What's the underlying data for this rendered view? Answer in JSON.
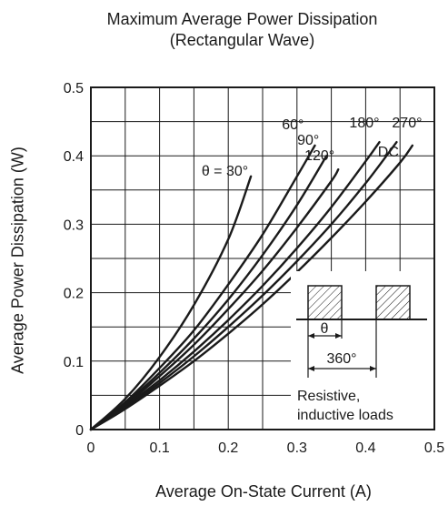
{
  "chart_data": {
    "type": "line",
    "title": "Maximum Average Power Dissipation",
    "subtitle": "(Rectangular Wave)",
    "xlabel": "Average On-State Current  (A)",
    "ylabel": "Average Power Dissipation  (W)",
    "xlim": [
      0,
      0.5
    ],
    "ylim": [
      0,
      0.5
    ],
    "x_ticks": [
      "0",
      "0.1",
      "0.2",
      "0.3",
      "0.4",
      "0.5"
    ],
    "y_ticks": [
      "0",
      "0.1",
      "0.2",
      "0.3",
      "0.4",
      "0.5"
    ],
    "grid": true,
    "series": [
      {
        "name": "θ = 30°",
        "x": [
          0,
          0.05,
          0.1,
          0.15,
          0.2,
          0.233
        ],
        "y": [
          0,
          0.045,
          0.106,
          0.182,
          0.278,
          0.37
        ]
      },
      {
        "name": "60°",
        "x": [
          0,
          0.05,
          0.1,
          0.15,
          0.2,
          0.25,
          0.3,
          0.326
        ],
        "y": [
          0,
          0.04,
          0.09,
          0.145,
          0.212,
          0.285,
          0.37,
          0.415
        ]
      },
      {
        "name": "90°",
        "x": [
          0,
          0.05,
          0.1,
          0.15,
          0.2,
          0.25,
          0.3,
          0.343
        ],
        "y": [
          0,
          0.038,
          0.083,
          0.133,
          0.19,
          0.255,
          0.328,
          0.4
        ]
      },
      {
        "name": "120°",
        "x": [
          0,
          0.05,
          0.1,
          0.15,
          0.2,
          0.25,
          0.3,
          0.35,
          0.36
        ],
        "y": [
          0,
          0.036,
          0.078,
          0.124,
          0.176,
          0.232,
          0.295,
          0.363,
          0.38
        ]
      },
      {
        "name": "180°",
        "x": [
          0,
          0.05,
          0.1,
          0.15,
          0.2,
          0.25,
          0.3,
          0.35,
          0.4,
          0.42
        ],
        "y": [
          0,
          0.034,
          0.072,
          0.114,
          0.16,
          0.21,
          0.265,
          0.325,
          0.392,
          0.42
        ]
      },
      {
        "name": "270°",
        "x": [
          0,
          0.05,
          0.1,
          0.15,
          0.2,
          0.25,
          0.3,
          0.35,
          0.4,
          0.445
        ],
        "y": [
          0,
          0.032,
          0.068,
          0.107,
          0.15,
          0.196,
          0.246,
          0.3,
          0.36,
          0.42
        ]
      },
      {
        "name": "DC",
        "x": [
          0,
          0.05,
          0.1,
          0.15,
          0.2,
          0.25,
          0.3,
          0.35,
          0.4,
          0.45,
          0.468
        ],
        "y": [
          0,
          0.03,
          0.064,
          0.1,
          0.14,
          0.183,
          0.23,
          0.28,
          0.333,
          0.39,
          0.415
        ]
      }
    ],
    "inset": {
      "theta_label": "θ",
      "period_label": "360°",
      "note_line1": "Resistive,",
      "note_line2": "inductive loads"
    }
  }
}
